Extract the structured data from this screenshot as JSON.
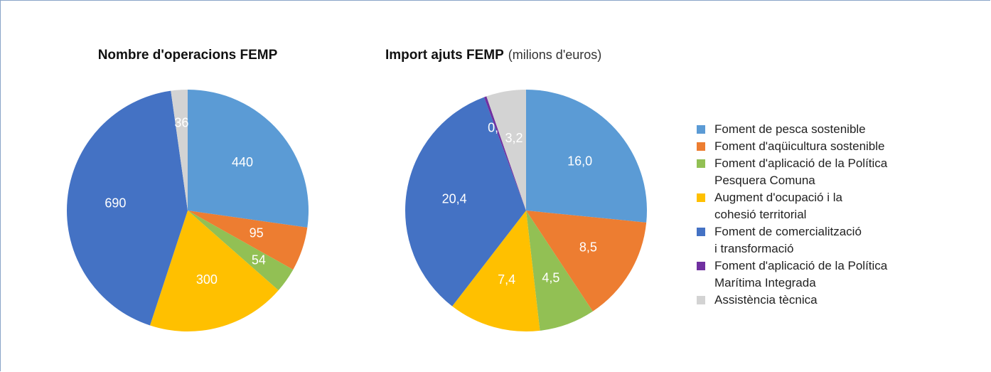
{
  "chart_data": [
    {
      "type": "pie",
      "title": "Nombre d'operacions FEMP",
      "values": [
        440,
        95,
        54,
        300,
        690,
        null,
        36
      ]
    },
    {
      "type": "pie",
      "title": "Import ajuts FEMP",
      "subtitle": "(milions d'euros)",
      "values": [
        16.0,
        8.5,
        4.5,
        7.4,
        20.4,
        0.2,
        3.2
      ],
      "value_labels": [
        "16,0",
        "8,5",
        "4,5",
        "7,4",
        "20,4",
        "0,2",
        "3,2"
      ]
    }
  ],
  "legend": {
    "position": "right",
    "categories": [
      "Foment de pesca sostenible",
      "Foment d'aqüicultura sostenible",
      "Foment d'aplicació de la Política\nPesquera Comuna",
      "Augment d'ocupació i la\ncohesió territorial",
      "Foment de comercialització\ni transformació",
      "Foment d'aplicació de la Política\nMarítima Integrada",
      "Assistència tècnica"
    ],
    "colors": [
      "#5b9bd5",
      "#ed7d31",
      "#92c054",
      "#ffc000",
      "#4472c4",
      "#7030a0",
      "#d3d3d3"
    ]
  }
}
